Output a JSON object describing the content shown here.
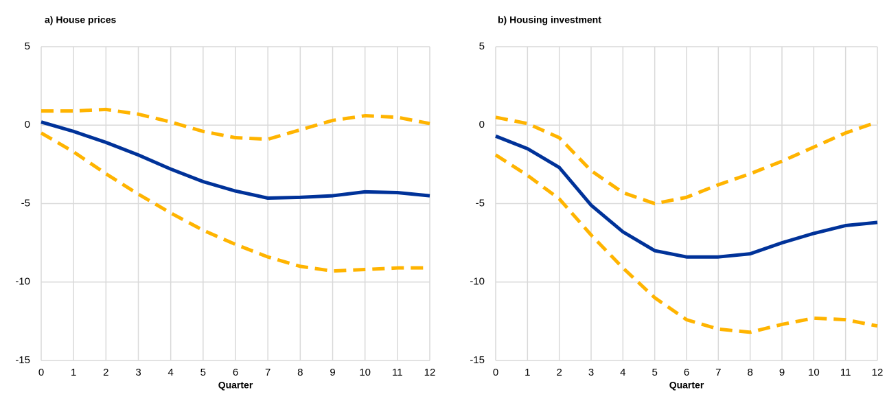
{
  "chart_data": [
    {
      "type": "line",
      "title": "a) House prices",
      "x_label": "Quarter",
      "x": [
        0,
        1,
        2,
        3,
        4,
        5,
        6,
        7,
        8,
        9,
        10,
        11,
        12
      ],
      "xlim": [
        0,
        12
      ],
      "xticks": [
        0,
        1,
        2,
        3,
        4,
        5,
        6,
        7,
        8,
        9,
        10,
        11,
        12
      ],
      "ylim": [
        -15,
        5
      ],
      "yticks": [
        -15,
        -10,
        -5,
        0,
        5
      ],
      "grid": true,
      "series": [
        {
          "color": "#ffb400",
          "dashed": true,
          "values": [
            0.9,
            0.9,
            1.0,
            0.7,
            0.2,
            -0.4,
            -0.8,
            -0.9,
            -0.3,
            0.3,
            0.6,
            0.5,
            0.1
          ]
        },
        {
          "color": "#ffb400",
          "dashed": true,
          "values": [
            -0.5,
            -1.7,
            -3.1,
            -4.4,
            -5.6,
            -6.7,
            -7.6,
            -8.4,
            -9.0,
            -9.3,
            -9.2,
            -9.1,
            -9.1
          ]
        },
        {
          "color": "#003299",
          "dashed": false,
          "values": [
            0.2,
            -0.4,
            -1.1,
            -1.9,
            -2.8,
            -3.6,
            -4.2,
            -4.65,
            -4.6,
            -4.5,
            -4.25,
            -4.3,
            -4.5
          ]
        }
      ]
    },
    {
      "type": "line",
      "title": "b) Housing investment",
      "x_label": "Quarter",
      "x": [
        0,
        1,
        2,
        3,
        4,
        5,
        6,
        7,
        8,
        9,
        10,
        11,
        12
      ],
      "xlim": [
        0,
        12
      ],
      "xticks": [
        0,
        1,
        2,
        3,
        4,
        5,
        6,
        7,
        8,
        9,
        10,
        11,
        12
      ],
      "ylim": [
        -15,
        5
      ],
      "yticks": [
        -15,
        -10,
        -5,
        0,
        5
      ],
      "grid": true,
      "series": [
        {
          "color": "#ffb400",
          "dashed": true,
          "values": [
            0.5,
            0.1,
            -0.8,
            -2.9,
            -4.3,
            -5.0,
            -4.6,
            -3.8,
            -3.1,
            -2.3,
            -1.4,
            -0.5,
            0.2
          ]
        },
        {
          "color": "#ffb400",
          "dashed": true,
          "values": [
            -1.9,
            -3.2,
            -4.7,
            -7.0,
            -9.1,
            -11.0,
            -12.4,
            -13.0,
            -13.2,
            -12.7,
            -12.3,
            -12.4,
            -12.8
          ]
        },
        {
          "color": "#003299",
          "dashed": false,
          "values": [
            -0.7,
            -1.5,
            -2.7,
            -5.1,
            -6.8,
            -8.0,
            -8.4,
            -8.4,
            -8.2,
            -7.5,
            -6.9,
            -6.4,
            -6.2
          ]
        }
      ]
    }
  ]
}
